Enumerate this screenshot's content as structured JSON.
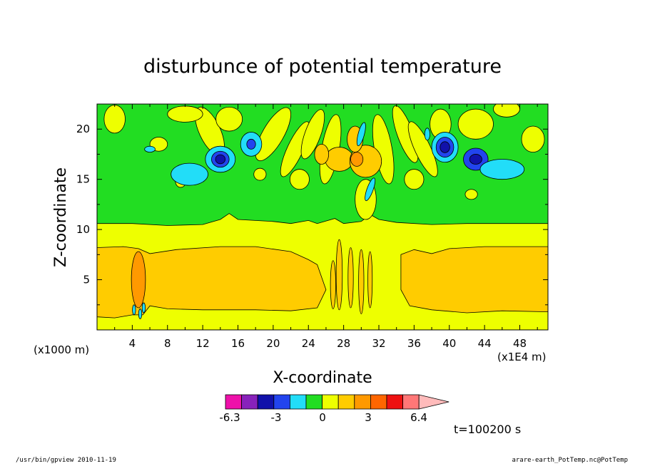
{
  "chart_data": {
    "type": "heatmap",
    "title": "disturbunce of potential temperature",
    "xlabel": "X-coordinate",
    "ylabel": "Z-coordinate",
    "x_unit_label": "(x1E4 m)",
    "y_unit_label": "(x1000 m)",
    "x_ticks": [
      "4",
      "8",
      "12",
      "16",
      "20",
      "24",
      "28",
      "32",
      "36",
      "40",
      "44",
      "48"
    ],
    "y_ticks": [
      "5",
      "10",
      "15",
      "20"
    ],
    "xlim": [
      0,
      51.2
    ],
    "ylim": [
      0,
      22.5
    ],
    "colorbar": {
      "tick_labels": [
        "-6.3",
        "-3",
        "0",
        "3",
        "6.4"
      ],
      "colors": [
        "#ee11aa",
        "#8822bb",
        "#1111aa",
        "#2244ee",
        "#22ddf8",
        "#22dd22",
        "#eeff00",
        "#ffcc00",
        "#ff9900",
        "#ff6600",
        "#ee1111",
        "#ff7777",
        "#ffbbbb"
      ]
    },
    "time_label": "t=100200 s",
    "features": [
      {
        "name": "lower warm layer",
        "level": "0 to 3",
        "z_range": [
          1,
          8.3
        ]
      },
      {
        "name": "upper neutral layer",
        "level": "near 0",
        "z_range": [
          11,
          22.5
        ]
      },
      {
        "name": "mountain wave column",
        "level": "0 to 3",
        "x": 4.7,
        "z_range": [
          1,
          8
        ]
      },
      {
        "name": "negative anomaly",
        "level": "-6.3 to -3",
        "x": 14,
        "z": 17
      },
      {
        "name": "negative anomaly",
        "level": "-6.3 to -3",
        "x": 39.5,
        "z": 18.2
      },
      {
        "name": "negative anomaly",
        "level": "-6.3 to -3",
        "x": 43,
        "z": 17
      },
      {
        "name": "positive anomaly",
        "level": "3 to 6.4",
        "x": 29.5,
        "z": 17
      }
    ]
  },
  "footer": {
    "left": "/usr/bin/gpview   2010-11-19",
    "right": "arare-earth_PotTemp.nc@PotTemp"
  }
}
